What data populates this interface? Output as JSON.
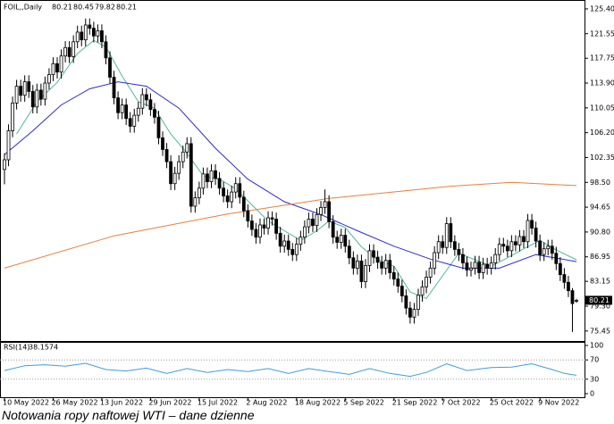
{
  "chart_data": [
    {
      "type": "candlestick",
      "title": "FOIL,,Daily",
      "up_color": "#ffffff",
      "down_color": "#000000",
      "xlim": [
        -1.1,
        143.2
      ],
      "xticks": [
        {
          "value": 0,
          "label": "10 May 2022"
        },
        {
          "value": 12,
          "label": "26 May 2022"
        },
        {
          "value": 24,
          "label": "13 Jun 2022"
        },
        {
          "value": 36,
          "label": "29 Jun 2022"
        },
        {
          "value": 48,
          "label": "15 Jul 2022"
        },
        {
          "value": 60,
          "label": "2 Aug 2022"
        },
        {
          "value": 72,
          "label": "18 Aug 2022"
        },
        {
          "value": 84,
          "label": "5 Sep 2022"
        },
        {
          "value": 96,
          "label": "21 Sep 2022"
        },
        {
          "value": 108,
          "label": "7 Oct 2022"
        },
        {
          "value": 120,
          "label": "25 Oct 2022"
        },
        {
          "value": 132,
          "label": "9 Nov 2022"
        }
      ],
      "ylim": [
        73.9,
        126.5
      ],
      "yticks": [
        {
          "value": 125.4,
          "label": "125.40"
        },
        121.55,
        117.75,
        {
          "value": 113.9,
          "label": "113.90"
        },
        110.05,
        {
          "value": 106.2,
          "label": "106.20"
        },
        102.35,
        {
          "value": 98.5,
          "label": "98.50"
        },
        94.65,
        {
          "value": 90.8,
          "label": "90.80"
        },
        86.95,
        83.15,
        {
          "value": 79.3,
          "label": "79.30"
        },
        75.45
      ],
      "open": [
        100.5,
        102.0,
        106.5,
        110.8,
        113.4,
        112.0,
        114.1,
        112.6,
        110.2,
        112.8,
        111.4,
        113.9,
        115.2,
        116.9,
        115.6,
        118.1,
        119.4,
        118.0,
        120.3,
        121.8,
        120.6,
        122.9,
        122.4,
        121.2,
        122.0,
        120.3,
        117.8,
        114.8,
        111.6,
        109.3,
        110.5,
        108.4,
        107.2,
        108.9,
        110.0,
        112.1,
        111.3,
        109.8,
        108.6,
        105.4,
        103.6,
        101.7,
        98.3,
        99.9,
        101.7,
        103.2,
        104.5,
        94.8,
        96.1,
        97.6,
        99.8,
        98.6,
        100.3,
        99.1,
        97.6,
        96.4,
        95.5,
        97.0,
        98.3,
        96.2,
        94.1,
        92.5,
        91.2,
        90.0,
        91.9,
        91.4,
        93.0,
        92.8,
        90.6,
        88.6,
        89.4,
        88.1,
        87.3,
        88.9,
        90.0,
        91.6,
        92.8,
        91.8,
        93.5,
        94.6,
        95.5,
        92.4,
        90.0,
        89.2,
        90.3,
        88.6,
        86.8,
        85.2,
        86.3,
        83.1,
        85.6,
        87.9,
        86.9,
        86.1,
        85.2,
        86.4,
        84.5,
        83.5,
        82.4,
        80.9,
        79.0,
        77.6,
        78.8,
        81.0,
        82.3,
        83.8,
        85.2,
        87.6,
        89.3,
        88.4,
        92.1,
        89.3,
        88.1,
        87.3,
        86.0,
        84.9,
        85.2,
        86.1,
        84.5,
        85.8,
        85.2,
        86.0,
        87.3,
        88.9,
        88.6,
        87.9,
        89.3,
        88.8,
        90.1,
        89.3,
        92.6,
        91.4,
        89.4,
        87.3,
        88.2,
        88.6,
        87.5,
        85.9,
        84.2,
        83.0,
        81.7,
        80.21
      ],
      "high": [
        103.0,
        107.5,
        111.8,
        114.4,
        114.4,
        115.1,
        115.1,
        113.6,
        113.8,
        113.8,
        114.9,
        116.2,
        117.9,
        117.9,
        119.1,
        120.4,
        120.4,
        121.3,
        122.8,
        122.8,
        123.9,
        123.9,
        123.4,
        123.0,
        123.0,
        121.3,
        118.8,
        115.8,
        112.6,
        111.5,
        111.5,
        109.4,
        109.9,
        111.0,
        113.1,
        113.1,
        112.3,
        110.8,
        109.6,
        106.4,
        104.6,
        102.7,
        100.9,
        102.7,
        104.2,
        105.5,
        105.5,
        97.1,
        98.6,
        100.8,
        100.8,
        101.3,
        101.3,
        100.1,
        98.6,
        97.4,
        98.0,
        99.3,
        99.3,
        97.2,
        95.1,
        93.5,
        92.2,
        92.9,
        92.9,
        94.0,
        94.0,
        93.8,
        91.6,
        90.4,
        90.4,
        89.1,
        89.9,
        91.0,
        92.6,
        93.8,
        93.8,
        94.5,
        95.6,
        97.4,
        96.5,
        93.4,
        91.0,
        91.3,
        91.3,
        89.6,
        87.8,
        87.3,
        87.3,
        86.6,
        88.9,
        88.9,
        87.9,
        87.1,
        87.4,
        87.4,
        85.5,
        84.5,
        83.4,
        81.9,
        80.0,
        79.8,
        82.0,
        83.3,
        84.8,
        86.2,
        88.6,
        90.3,
        90.3,
        93.1,
        93.1,
        90.3,
        89.1,
        88.3,
        87.0,
        86.2,
        87.1,
        87.1,
        86.8,
        86.8,
        87.0,
        88.3,
        89.9,
        89.9,
        89.6,
        90.3,
        90.3,
        91.1,
        91.1,
        93.6,
        93.6,
        92.4,
        90.4,
        89.2,
        89.6,
        89.6,
        88.5,
        86.9,
        85.2,
        84.0,
        82.1,
        80.45
      ],
      "low": [
        98.2,
        101.0,
        105.5,
        109.8,
        111.0,
        111.0,
        111.6,
        109.2,
        109.2,
        110.4,
        110.4,
        112.9,
        114.2,
        114.6,
        114.6,
        117.1,
        117.0,
        117.0,
        119.3,
        119.6,
        119.6,
        121.4,
        120.2,
        120.2,
        119.3,
        116.8,
        113.8,
        110.6,
        108.3,
        108.3,
        107.4,
        106.2,
        106.2,
        107.9,
        109.0,
        110.3,
        108.8,
        107.6,
        104.4,
        102.6,
        100.7,
        97.3,
        97.3,
        98.9,
        100.7,
        102.2,
        93.8,
        93.8,
        95.1,
        96.6,
        97.6,
        97.6,
        98.1,
        96.6,
        95.4,
        94.5,
        94.5,
        96.0,
        95.2,
        93.1,
        91.5,
        90.2,
        89.0,
        89.0,
        90.4,
        90.4,
        91.8,
        89.6,
        87.6,
        87.6,
        87.1,
        86.3,
        86.3,
        87.9,
        89.0,
        90.6,
        90.8,
        90.8,
        92.5,
        93.6,
        91.4,
        89.0,
        88.2,
        88.2,
        87.6,
        85.8,
        84.2,
        84.2,
        82.1,
        82.1,
        84.6,
        85.9,
        85.1,
        84.2,
        84.2,
        83.5,
        82.5,
        81.4,
        79.9,
        78.0,
        76.6,
        76.6,
        77.8,
        80.0,
        81.3,
        82.8,
        84.2,
        86.6,
        87.4,
        87.4,
        88.3,
        87.1,
        86.3,
        85.0,
        83.9,
        83.9,
        84.2,
        83.5,
        83.5,
        84.2,
        84.2,
        85.0,
        86.3,
        87.6,
        86.9,
        86.9,
        87.8,
        87.8,
        88.3,
        88.3,
        90.4,
        88.4,
        86.3,
        86.3,
        87.2,
        86.5,
        84.9,
        83.2,
        82.0,
        80.7,
        75.3,
        79.82
      ],
      "close": [
        102.0,
        106.5,
        110.8,
        113.4,
        112.0,
        114.1,
        112.6,
        110.2,
        112.8,
        111.4,
        113.9,
        115.2,
        116.9,
        115.6,
        118.1,
        119.4,
        118.0,
        120.3,
        121.8,
        120.6,
        122.9,
        122.4,
        121.2,
        122.0,
        120.3,
        117.8,
        114.8,
        111.6,
        109.3,
        110.5,
        108.4,
        107.2,
        108.9,
        110.0,
        112.1,
        111.3,
        109.8,
        108.6,
        105.4,
        103.6,
        101.7,
        98.3,
        99.9,
        101.7,
        103.2,
        104.5,
        94.8,
        96.1,
        97.6,
        99.8,
        98.6,
        100.3,
        99.1,
        97.6,
        96.4,
        95.5,
        97.0,
        98.3,
        96.2,
        94.1,
        92.5,
        91.2,
        90.0,
        91.9,
        91.4,
        93.0,
        92.8,
        90.6,
        88.6,
        89.4,
        88.1,
        87.3,
        88.9,
        90.0,
        91.6,
        92.8,
        91.8,
        93.5,
        94.6,
        95.5,
        92.4,
        90.0,
        89.2,
        90.3,
        88.6,
        86.8,
        85.2,
        86.3,
        83.1,
        85.6,
        87.9,
        86.9,
        86.1,
        85.2,
        86.4,
        84.5,
        83.5,
        82.4,
        80.9,
        79.0,
        77.6,
        78.8,
        81.0,
        82.3,
        83.8,
        85.2,
        87.6,
        89.3,
        88.4,
        92.1,
        89.3,
        88.1,
        87.3,
        86.0,
        84.9,
        85.2,
        86.1,
        84.5,
        85.8,
        85.2,
        86.0,
        87.3,
        88.9,
        88.6,
        87.9,
        89.3,
        88.8,
        90.1,
        89.3,
        92.6,
        91.4,
        89.4,
        87.3,
        88.2,
        88.6,
        87.5,
        85.9,
        84.2,
        83.0,
        81.7,
        79.7,
        80.21
      ],
      "overlays": [
        {
          "color": "#4fb89a",
          "x": [
            3,
            8,
            13,
            18,
            22,
            25,
            29,
            33,
            37,
            41,
            45,
            49,
            53,
            57,
            61,
            65,
            69,
            73,
            77,
            80,
            84,
            88,
            92,
            96,
            100,
            104,
            108,
            112,
            116,
            120,
            124,
            128,
            132,
            136,
            141
          ],
          "values": [
            106,
            111,
            114,
            118.5,
            120.5,
            119.5,
            115,
            111,
            110,
            106,
            103,
            99.5,
            99,
            97.5,
            95,
            92.5,
            91,
            89.5,
            91,
            92.5,
            91.5,
            88.5,
            86.5,
            85.5,
            81.5,
            80.5,
            84,
            87.5,
            86.5,
            85.5,
            86.8,
            88.2,
            89.5,
            88,
            86.5
          ]
        },
        {
          "color": "#2b2bd0",
          "x": [
            0,
            7,
            14,
            21,
            28,
            35,
            43,
            52,
            60,
            69,
            78,
            87,
            96,
            105,
            113,
            122,
            131,
            141
          ],
          "values": [
            102.8,
            106.5,
            110.5,
            113,
            114.1,
            113.4,
            110,
            103.8,
            99,
            95.5,
            93.5,
            91,
            88.6,
            86.6,
            85.2,
            85.2,
            87.3,
            86.2
          ]
        },
        {
          "color": "#e8803a",
          "x": [
            0,
            27,
            55,
            80,
            110,
            125,
            141
          ],
          "values": [
            85.2,
            90.2,
            93.6,
            96.0,
            97.9,
            98.5,
            98.0
          ]
        }
      ]
    },
    {
      "type": "line",
      "title": "RSI(14)",
      "color": "#3a9ee0",
      "xlim": [
        -1.1,
        143.2
      ],
      "ylim": [
        0,
        100
      ],
      "yticks": [
        100,
        70,
        30,
        0
      ],
      "x": [
        0,
        5,
        10,
        15,
        20,
        25,
        30,
        35,
        40,
        45,
        50,
        55,
        60,
        65,
        70,
        75,
        80,
        85,
        90,
        95,
        100,
        104,
        109,
        114,
        120,
        125,
        130,
        135,
        138,
        141
      ],
      "values": [
        48,
        58,
        60,
        57,
        63,
        50,
        47,
        53,
        42,
        52,
        44,
        50,
        46,
        52,
        42,
        52,
        46,
        40,
        52,
        42,
        36,
        44,
        62,
        48,
        54,
        55,
        62,
        50,
        42,
        38.1574
      ]
    }
  ],
  "caption": "Notowania ropy naftowej WTI – dane dzienne"
}
